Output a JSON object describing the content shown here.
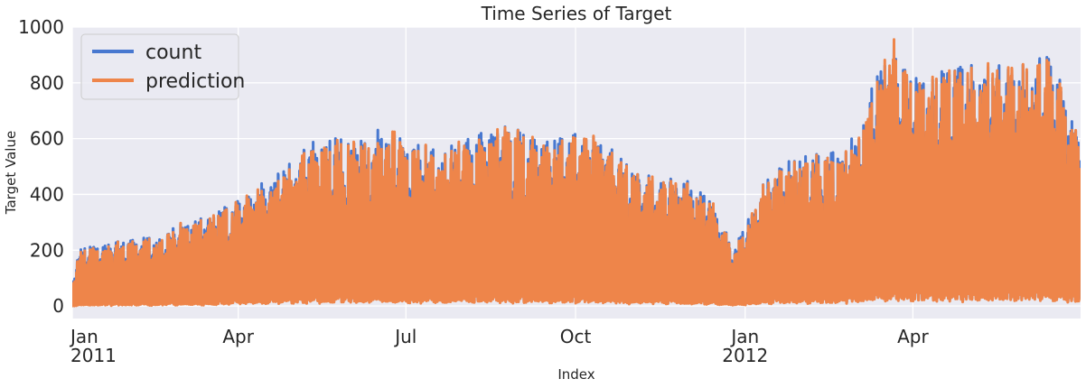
{
  "chart_data": {
    "type": "line",
    "title": "Time Series of Target",
    "xlabel": "Index",
    "ylabel": "Target Value",
    "xlim": [
      "2011-01-01",
      "2012-06-30"
    ],
    "ylim": [
      -45,
      1000
    ],
    "yticks": [
      0,
      200,
      400,
      600,
      800,
      1000
    ],
    "xticks": [
      {
        "date": "2011-01-01",
        "label": "Jan",
        "sublabel": "2011"
      },
      {
        "date": "2011-04-01",
        "label": "Apr",
        "sublabel": ""
      },
      {
        "date": "2011-07-01",
        "label": "Jul",
        "sublabel": ""
      },
      {
        "date": "2011-10-01",
        "label": "Oct",
        "sublabel": ""
      },
      {
        "date": "2012-01-01",
        "label": "Jan",
        "sublabel": "2012"
      },
      {
        "date": "2012-04-01",
        "label": "Apr",
        "sublabel": ""
      }
    ],
    "grid": true,
    "legend_position": "top-left",
    "background": "#eaeaf2",
    "series": [
      {
        "name": "count",
        "color": "#4878d0",
        "daily_min": [
          0,
          0,
          0
        ],
        "daily_max_points": [
          {
            "date": "2011-01-01",
            "value": 110
          },
          {
            "date": "2011-01-05",
            "value": 220
          },
          {
            "date": "2011-01-20",
            "value": 225
          },
          {
            "date": "2011-02-01",
            "value": 250
          },
          {
            "date": "2011-02-15",
            "value": 245
          },
          {
            "date": "2011-03-01",
            "value": 300
          },
          {
            "date": "2011-03-15",
            "value": 330
          },
          {
            "date": "2011-04-01",
            "value": 380
          },
          {
            "date": "2011-04-15",
            "value": 450
          },
          {
            "date": "2011-05-01",
            "value": 530
          },
          {
            "date": "2011-05-15",
            "value": 610
          },
          {
            "date": "2011-06-01",
            "value": 600
          },
          {
            "date": "2011-06-15",
            "value": 640
          },
          {
            "date": "2011-07-01",
            "value": 600
          },
          {
            "date": "2011-07-15",
            "value": 570
          },
          {
            "date": "2011-08-01",
            "value": 590
          },
          {
            "date": "2011-08-15",
            "value": 650
          },
          {
            "date": "2011-09-01",
            "value": 640
          },
          {
            "date": "2011-09-15",
            "value": 600
          },
          {
            "date": "2011-10-01",
            "value": 620
          },
          {
            "date": "2011-10-15",
            "value": 600
          },
          {
            "date": "2011-11-01",
            "value": 480
          },
          {
            "date": "2011-11-15",
            "value": 470
          },
          {
            "date": "2011-12-01",
            "value": 460
          },
          {
            "date": "2011-12-15",
            "value": 360
          },
          {
            "date": "2011-12-25",
            "value": 210
          },
          {
            "date": "2012-01-01",
            "value": 300
          },
          {
            "date": "2012-01-15",
            "value": 510
          },
          {
            "date": "2012-02-01",
            "value": 540
          },
          {
            "date": "2012-02-15",
            "value": 560
          },
          {
            "date": "2012-03-01",
            "value": 620
          },
          {
            "date": "2012-03-10",
            "value": 800
          },
          {
            "date": "2012-03-20",
            "value": 960
          },
          {
            "date": "2012-04-01",
            "value": 820
          },
          {
            "date": "2012-04-15",
            "value": 840
          },
          {
            "date": "2012-05-01",
            "value": 870
          },
          {
            "date": "2012-05-15",
            "value": 860
          },
          {
            "date": "2012-06-01",
            "value": 880
          },
          {
            "date": "2012-06-15",
            "value": 900
          },
          {
            "date": "2012-06-30",
            "value": 620
          }
        ]
      },
      {
        "name": "prediction",
        "color": "#ee854a"
      }
    ]
  }
}
